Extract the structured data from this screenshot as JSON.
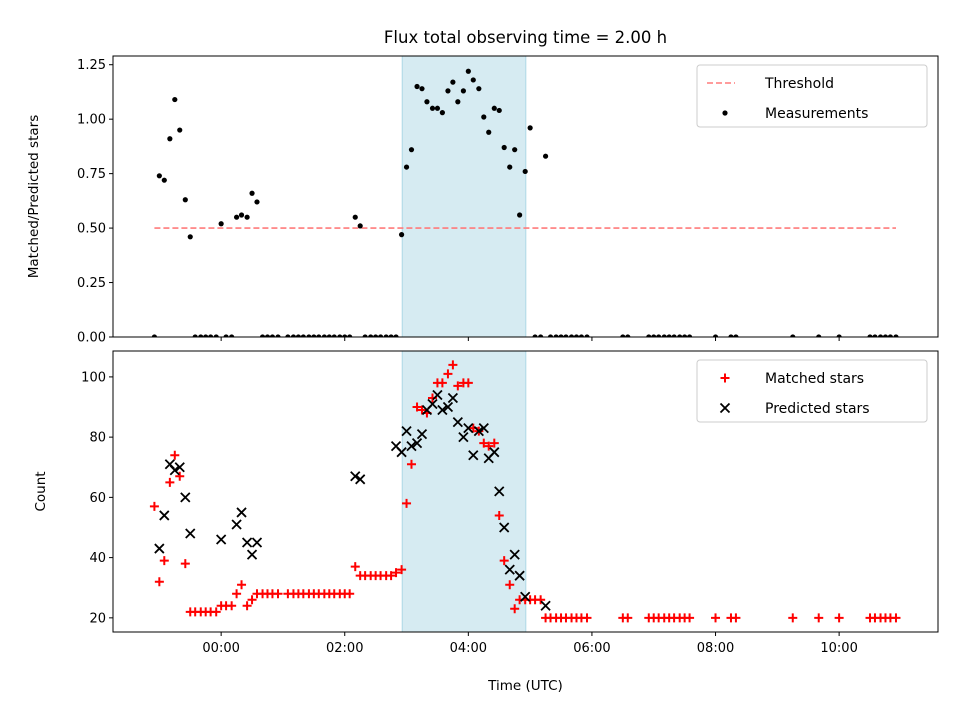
{
  "chart_data": [
    {
      "type": "scatter",
      "title": "Flux total observing time = 2.00 h",
      "xlabel": "",
      "ylabel": "Matched/Predicted stars",
      "xlim": [
        -1.75,
        11.6
      ],
      "ylim": [
        0,
        1.29
      ],
      "y_ticks": [
        0.0,
        0.25,
        0.5,
        0.75,
        1.0,
        1.25
      ],
      "y_tick_labels": [
        "0.00",
        "0.25",
        "0.50",
        "0.75",
        "1.00",
        "1.25"
      ],
      "x_ticks": [
        0,
        2,
        4,
        6,
        8,
        10
      ],
      "x_tick_labels": [],
      "grid": false,
      "legend_position": "upper right",
      "highlight_span": {
        "x0": 2.93,
        "x1": 4.93,
        "color": "#add8e6"
      },
      "series": [
        {
          "name": "Threshold",
          "type": "line",
          "style": "dashed",
          "color": "#ff7b7b",
          "x": [
            -1.08,
            10.92
          ],
          "y": [
            0.5,
            0.5
          ]
        },
        {
          "name": "Measurements",
          "type": "scatter",
          "marker": "dot",
          "color": "#000000",
          "x": [
            -1.08,
            -1.0,
            -0.92,
            -0.83,
            -0.75,
            -0.67,
            -0.58,
            -0.5,
            -0.42,
            -0.33,
            -0.25,
            -0.17,
            -0.08,
            0.0,
            0.08,
            0.17,
            0.25,
            0.33,
            0.42,
            0.5,
            0.58,
            0.67,
            0.75,
            0.83,
            0.92,
            1.08,
            1.17,
            1.25,
            1.33,
            1.42,
            1.5,
            1.58,
            1.67,
            1.75,
            1.83,
            1.92,
            2.0,
            2.08,
            2.17,
            2.25,
            2.33,
            2.42,
            2.5,
            2.58,
            2.67,
            2.75,
            2.83,
            2.92,
            3.0,
            3.08,
            3.17,
            3.25,
            3.33,
            3.42,
            3.5,
            3.58,
            3.67,
            3.75,
            3.83,
            3.92,
            4.0,
            4.08,
            4.17,
            4.25,
            4.33,
            4.42,
            4.5,
            4.58,
            4.67,
            4.75,
            4.83,
            4.92,
            5.0,
            5.08,
            5.17,
            5.25,
            5.33,
            5.42,
            5.5,
            5.58,
            5.67,
            5.75,
            5.83,
            5.92,
            6.5,
            6.58,
            6.92,
            7.0,
            7.08,
            7.17,
            7.25,
            7.33,
            7.42,
            7.5,
            7.58,
            8.0,
            8.25,
            8.33,
            9.25,
            9.67,
            10.0,
            10.5,
            10.58,
            10.67,
            10.75,
            10.83,
            10.92
          ],
          "y": [
            0.0,
            0.74,
            0.72,
            0.91,
            1.09,
            0.95,
            0.63,
            0.46,
            0.0,
            0.0,
            0.0,
            0.0,
            0.0,
            0.52,
            0.0,
            0.0,
            0.55,
            0.56,
            0.55,
            0.66,
            0.62,
            0.0,
            0.0,
            0.0,
            0.0,
            0.0,
            0.0,
            0.0,
            0.0,
            0.0,
            0.0,
            0.0,
            0.0,
            0.0,
            0.0,
            0.0,
            0.0,
            0.0,
            0.55,
            0.51,
            0.0,
            0.0,
            0.0,
            0.0,
            0.0,
            0.0,
            0.0,
            0.47,
            0.78,
            0.86,
            1.15,
            1.14,
            1.08,
            1.05,
            1.05,
            1.03,
            1.13,
            1.17,
            1.08,
            1.13,
            1.22,
            1.18,
            1.14,
            1.01,
            0.94,
            1.05,
            1.04,
            0.87,
            0.78,
            0.86,
            0.56,
            0.76,
            0.96,
            0.0,
            0.0,
            0.83,
            0.0,
            0.0,
            0.0,
            0.0,
            0.0,
            0.0,
            0.0,
            0.0,
            0.0,
            0.0,
            0.0,
            0.0,
            0.0,
            0.0,
            0.0,
            0.0,
            0.0,
            0.0,
            0.0,
            0.0,
            0.0,
            0.0,
            0.0,
            0.0,
            0.0,
            0.0,
            0.0,
            0.0,
            0.0,
            0.0,
            0.0
          ]
        }
      ]
    },
    {
      "type": "scatter",
      "title": "",
      "xlabel": "Time (UTC)",
      "ylabel": "Count",
      "xlim": [
        -1.75,
        11.6
      ],
      "ylim": [
        15.3,
        108.6
      ],
      "y_ticks": [
        20,
        40,
        60,
        80,
        100
      ],
      "y_tick_labels": [
        "20",
        "40",
        "60",
        "80",
        "100"
      ],
      "x_ticks": [
        0,
        2,
        4,
        6,
        8,
        10
      ],
      "x_tick_labels": [
        "00:00",
        "02:00",
        "04:00",
        "06:00",
        "08:00",
        "10:00"
      ],
      "grid": false,
      "legend_position": "upper right",
      "highlight_span": {
        "x0": 2.93,
        "x1": 4.93,
        "color": "#add8e6"
      },
      "series": [
        {
          "name": "Matched stars",
          "type": "scatter",
          "marker": "plus",
          "color": "#ff0000",
          "x": [
            -1.08,
            -1.0,
            -0.92,
            -0.83,
            -0.75,
            -0.67,
            -0.58,
            -0.5,
            -0.42,
            -0.33,
            -0.25,
            -0.17,
            -0.08,
            0.0,
            0.08,
            0.17,
            0.25,
            0.33,
            0.42,
            0.5,
            0.58,
            0.67,
            0.75,
            0.83,
            0.92,
            1.08,
            1.17,
            1.25,
            1.33,
            1.42,
            1.5,
            1.58,
            1.67,
            1.75,
            1.83,
            1.92,
            2.0,
            2.08,
            2.17,
            2.25,
            2.33,
            2.42,
            2.5,
            2.58,
            2.67,
            2.75,
            2.83,
            2.92,
            3.0,
            3.08,
            3.17,
            3.25,
            3.33,
            3.42,
            3.5,
            3.58,
            3.67,
            3.75,
            3.83,
            3.92,
            4.0,
            4.08,
            4.17,
            4.25,
            4.33,
            4.42,
            4.5,
            4.58,
            4.67,
            4.75,
            4.83,
            4.92,
            5.0,
            5.08,
            5.17,
            5.25,
            5.33,
            5.42,
            5.5,
            5.58,
            5.67,
            5.75,
            5.83,
            5.92,
            6.5,
            6.58,
            6.92,
            7.0,
            7.08,
            7.17,
            7.25,
            7.33,
            7.42,
            7.5,
            7.58,
            8.0,
            8.25,
            8.33,
            9.25,
            9.67,
            10.0,
            10.5,
            10.58,
            10.67,
            10.75,
            10.83,
            10.92
          ],
          "y": [
            57,
            32,
            39,
            65,
            74,
            67,
            38,
            22,
            22,
            22,
            22,
            22,
            22,
            24,
            24,
            24,
            28,
            31,
            24,
            26,
            28,
            28,
            28,
            28,
            28,
            28,
            28,
            28,
            28,
            28,
            28,
            28,
            28,
            28,
            28,
            28,
            28,
            28,
            37,
            34,
            34,
            34,
            34,
            34,
            34,
            34,
            35,
            36,
            58,
            71,
            90,
            89,
            88,
            93,
            98,
            98,
            101,
            104,
            97,
            98,
            98,
            83,
            82,
            78,
            77,
            78,
            54,
            39,
            31,
            23,
            26,
            26,
            26,
            26,
            26,
            20,
            20,
            20,
            20,
            20,
            20,
            20,
            20,
            20,
            20,
            20,
            20,
            20,
            20,
            20,
            20,
            20,
            20,
            20,
            20,
            20,
            20,
            20,
            20,
            20,
            20,
            20,
            20,
            20,
            20,
            20,
            20
          ]
        },
        {
          "name": "Predicted stars",
          "type": "scatter",
          "marker": "x",
          "color": "#000000",
          "x": [
            -1.0,
            -0.92,
            -0.83,
            -0.75,
            -0.67,
            -0.58,
            -0.5,
            0.0,
            0.25,
            0.33,
            0.42,
            0.5,
            0.58,
            2.17,
            2.25,
            2.83,
            2.92,
            3.0,
            3.08,
            3.17,
            3.25,
            3.33,
            3.42,
            3.5,
            3.58,
            3.67,
            3.75,
            3.83,
            3.92,
            4.0,
            4.08,
            4.17,
            4.25,
            4.33,
            4.42,
            4.5,
            4.58,
            4.67,
            4.75,
            4.83,
            4.92,
            5.25
          ],
          "y": [
            43,
            54,
            71,
            69,
            70,
            60,
            48,
            46,
            51,
            55,
            45,
            41,
            45,
            67,
            66,
            77,
            75,
            82,
            77,
            78,
            81,
            89,
            91,
            94,
            89,
            90,
            93,
            85,
            80,
            83,
            74,
            82,
            83,
            73,
            75,
            62,
            50,
            36,
            41,
            34,
            27,
            24
          ]
        }
      ]
    }
  ]
}
